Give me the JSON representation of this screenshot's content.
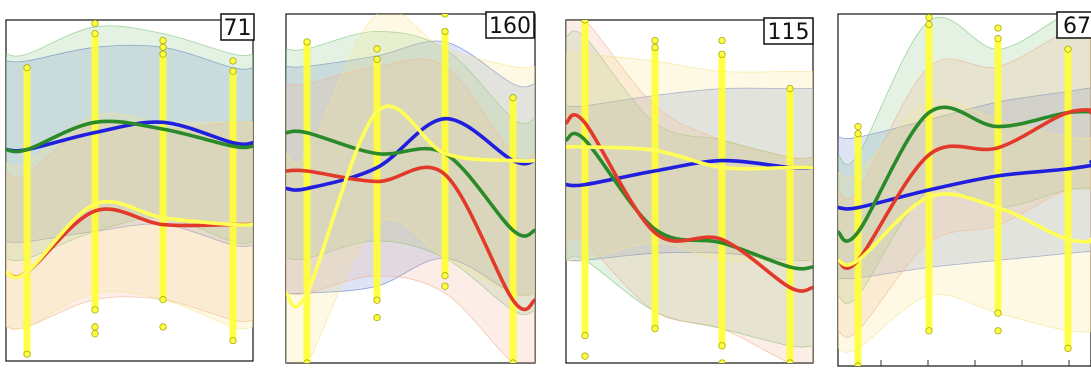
{
  "chart_data": [
    {
      "type": "line",
      "label": "71",
      "x": [
        0,
        1,
        2,
        3
      ],
      "series": [
        {
          "color": "#1f1fdd",
          "values": [
            0.62,
            0.67,
            0.7,
            0.64
          ],
          "band": [
            [
              0.35,
              0.88
            ],
            [
              0.38,
              0.92
            ],
            [
              0.4,
              0.92
            ],
            [
              0.34,
              0.86
            ]
          ],
          "band_color": "#6a7fd0"
        },
        {
          "color": "#2a8a2a",
          "values": [
            0.62,
            0.7,
            0.68,
            0.63
          ],
          "band": [
            [
              0.3,
              0.9
            ],
            [
              0.38,
              0.98
            ],
            [
              0.42,
              0.96
            ],
            [
              0.35,
              0.9
            ]
          ],
          "band_color": "#7fc47f"
        },
        {
          "color": "#e23a2a",
          "values": [
            0.26,
            0.44,
            0.4,
            0.4
          ],
          "band": [
            [
              0.1,
              0.55
            ],
            [
              0.18,
              0.7
            ],
            [
              0.18,
              0.68
            ],
            [
              0.12,
              0.7
            ]
          ],
          "band_color": "#f0b090"
        },
        {
          "color": "#ffff55",
          "values": [
            0.26,
            0.46,
            0.42,
            0.4
          ],
          "band": [
            [
              0.1,
              0.58
            ],
            [
              0.2,
              0.72
            ],
            [
              0.18,
              0.7
            ],
            [
              0.1,
              0.7
            ]
          ],
          "band_color": "#f6e48a"
        }
      ],
      "scatter": [
        {
          "x": 0,
          "lo": 0.02,
          "hi": 0.86,
          "extra": []
        },
        {
          "x": 1,
          "lo": 0.15,
          "hi": 0.96,
          "extra": [
            0.08,
            0.1,
            0.99,
            1.01
          ]
        },
        {
          "x": 2,
          "lo": 0.18,
          "hi": 0.9,
          "extra": [
            0.1,
            0.92,
            0.94
          ]
        },
        {
          "x": 3,
          "lo": 0.06,
          "hi": 0.85,
          "extra": [
            0.88
          ]
        }
      ],
      "ylim": [
        0,
        1
      ]
    },
    {
      "type": "line",
      "label": "160",
      "x": [
        0,
        1,
        2,
        3
      ],
      "series": [
        {
          "color": "#1f1fdd",
          "values": [
            0.5,
            0.56,
            0.7,
            0.58
          ],
          "band": [
            [
              0.2,
              0.85
            ],
            [
              0.22,
              0.88
            ],
            [
              0.3,
              0.92
            ],
            [
              0.2,
              0.8
            ]
          ],
          "band_color": "#6a7fd0"
        },
        {
          "color": "#2a8a2a",
          "values": [
            0.66,
            0.6,
            0.6,
            0.38
          ],
          "band": [
            [
              0.3,
              0.9
            ],
            [
              0.35,
              0.95
            ],
            [
              0.3,
              0.9
            ],
            [
              0.15,
              0.7
            ]
          ],
          "band_color": "#7fc47f"
        },
        {
          "color": "#e23a2a",
          "values": [
            0.55,
            0.52,
            0.54,
            0.18
          ],
          "band": [
            [
              0.2,
              0.8
            ],
            [
              0.25,
              0.85
            ],
            [
              0.2,
              0.85
            ],
            [
              0.0,
              0.6
            ]
          ],
          "band_color": "#f0b090"
        },
        {
          "color": "#ffff55",
          "values": [
            0.2,
            0.72,
            0.6,
            0.58
          ],
          "band": [
            [
              0.0,
              0.6
            ],
            [
              0.4,
              1.0
            ],
            [
              0.3,
              0.9
            ],
            [
              0.2,
              0.85
            ]
          ],
          "band_color": "#f6e48a"
        }
      ],
      "scatter": [
        {
          "x": 0,
          "lo": 0.0,
          "hi": 0.92,
          "extra": []
        },
        {
          "x": 1,
          "lo": 0.18,
          "hi": 0.87,
          "extra": [
            0.13,
            0.9
          ]
        },
        {
          "x": 2,
          "lo": 0.25,
          "hi": 0.95,
          "extra": [
            0.22,
            1.0
          ]
        },
        {
          "x": 3,
          "lo": 0.0,
          "hi": 0.76,
          "extra": []
        }
      ],
      "ylim": [
        0,
        1
      ]
    },
    {
      "type": "line",
      "label": "115",
      "x": [
        0,
        1,
        2,
        3
      ],
      "series": [
        {
          "color": "#1f1fdd",
          "values": [
            0.52,
            0.56,
            0.59,
            0.57
          ],
          "band": [
            [
              0.3,
              0.75
            ],
            [
              0.32,
              0.78
            ],
            [
              0.32,
              0.8
            ],
            [
              0.3,
              0.8
            ]
          ],
          "band_color": "#6a7fd0"
        },
        {
          "color": "#2a8a2a",
          "values": [
            0.65,
            0.39,
            0.35,
            0.28
          ],
          "band": [
            [
              0.3,
              0.95
            ],
            [
              0.15,
              0.7
            ],
            [
              0.1,
              0.65
            ],
            [
              0.05,
              0.6
            ]
          ],
          "band_color": "#7fc47f"
        },
        {
          "color": "#e23a2a",
          "values": [
            0.7,
            0.38,
            0.36,
            0.22
          ],
          "band": [
            [
              0.35,
              1.0
            ],
            [
              0.15,
              0.75
            ],
            [
              0.1,
              0.65
            ],
            [
              0.0,
              0.6
            ]
          ],
          "band_color": "#f0b090"
        },
        {
          "color": "#ffff55",
          "values": [
            0.63,
            0.62,
            0.57,
            0.57
          ],
          "band": [
            [
              0.3,
              0.9
            ],
            [
              0.35,
              0.88
            ],
            [
              0.3,
              0.85
            ],
            [
              0.3,
              0.85
            ]
          ],
          "band_color": "#f6e48a"
        }
      ],
      "scatter": [
        {
          "x": 0,
          "lo": 0.08,
          "hi": 1.0,
          "extra": [
            0.02
          ]
        },
        {
          "x": 1,
          "lo": 0.1,
          "hi": 0.92,
          "extra": [
            0.94
          ]
        },
        {
          "x": 2,
          "lo": 0.05,
          "hi": 0.9,
          "extra": [
            0.0,
            0.94
          ]
        },
        {
          "x": 3,
          "lo": 0.0,
          "hi": 0.8,
          "extra": []
        }
      ],
      "ylim": [
        0,
        1
      ]
    },
    {
      "type": "line",
      "label": "67",
      "x": [
        0,
        1,
        2,
        3,
        4
      ],
      "series": [
        {
          "color": "#1f1fdd",
          "values": [
            0.45,
            0.5,
            0.54,
            0.56,
            0.58
          ],
          "band": [
            [
              0.25,
              0.65
            ],
            [
              0.28,
              0.7
            ],
            [
              0.3,
              0.75
            ],
            [
              0.32,
              0.78
            ],
            [
              0.33,
              0.8
            ]
          ],
          "band_color": "#6a7fd0"
        },
        {
          "color": "#2a8a2a",
          "values": [
            0.38,
            0.72,
            0.68,
            0.72,
            0.72
          ],
          "band": [
            [
              0.2,
              0.6
            ],
            [
              0.5,
              0.98
            ],
            [
              0.45,
              0.9
            ],
            [
              0.5,
              1.0
            ],
            [
              0.5,
              1.0
            ]
          ],
          "band_color": "#7fc47f"
        },
        {
          "color": "#e23a2a",
          "values": [
            0.3,
            0.6,
            0.62,
            0.72,
            0.72
          ],
          "band": [
            [
              0.1,
              0.5
            ],
            [
              0.35,
              0.85
            ],
            [
              0.4,
              0.85
            ],
            [
              0.5,
              0.95
            ],
            [
              0.5,
              0.95
            ]
          ],
          "band_color": "#f0b090"
        },
        {
          "color": "#ffff55",
          "values": [
            0.3,
            0.48,
            0.45,
            0.36,
            0.36
          ],
          "band": [
            [
              0.05,
              0.55
            ],
            [
              0.2,
              0.75
            ],
            [
              0.15,
              0.7
            ],
            [
              0.1,
              0.65
            ],
            [
              0.1,
              0.65
            ]
          ],
          "band_color": "#f6e48a"
        }
      ],
      "scatter": [
        {
          "x": 0,
          "lo": 0.0,
          "hi": 0.66,
          "extra": [
            0.68
          ]
        },
        {
          "x": 1,
          "lo": 0.1,
          "hi": 0.97,
          "extra": [
            0.99
          ]
        },
        {
          "x": 2,
          "lo": 0.15,
          "hi": 0.93,
          "extra": [
            0.1,
            0.96
          ]
        },
        {
          "x": 3,
          "lo": 0.05,
          "hi": 0.9,
          "extra": [
            0.98
          ]
        }
      ],
      "ylim": [
        0,
        1
      ]
    }
  ]
}
